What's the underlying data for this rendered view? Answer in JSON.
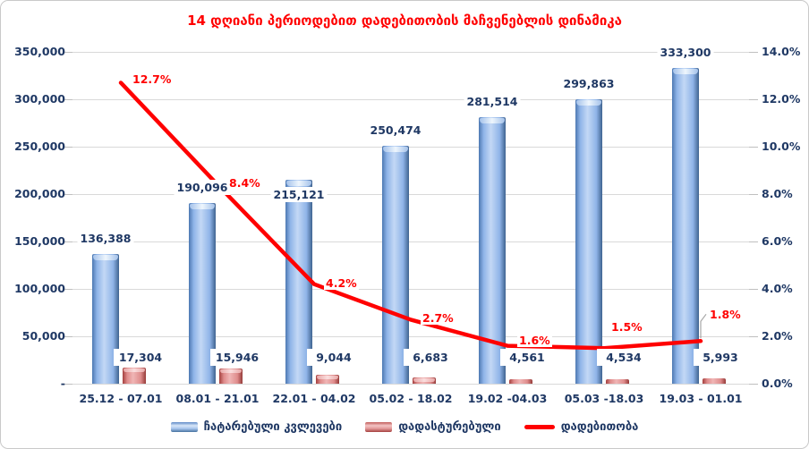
{
  "title": "14 დღიანი პერიოდებით დადებითობის მაჩვენებლის დინამიკა",
  "colors": {
    "title": "#FF0000",
    "axis_text": "#1F3864",
    "grid": "#D9D9D9",
    "line": "#FF0000",
    "pct_label": "#FF0000",
    "bar_blue": "#7EA6E0",
    "bar_red": "#D96A6A",
    "leader_line": "#A6A6A6"
  },
  "chart_data": {
    "type": "bar",
    "subtype": "combo-bar-line",
    "title": "14 დღიანი პერიოდებით დადებითობის მაჩვენებლის დინამიკა",
    "categories": [
      "25.12 - 07.01",
      "08.01 - 21.01",
      "22.01 - 04.02",
      "05.02 - 18.02",
      "19.02 -04.03",
      "05.03 -18.03",
      "19.03 - 01.01"
    ],
    "series": [
      {
        "name": "ჩატარებული კვლევები",
        "type": "bar",
        "axis": "left",
        "color": "#7EA6E0",
        "values": [
          136388,
          190096,
          215121,
          250474,
          281514,
          299863,
          333300
        ],
        "labels": [
          "136,388",
          "190,096",
          "215,121",
          "250,474",
          "281,514",
          "299,863",
          "333,300"
        ]
      },
      {
        "name": "დადასტურებული",
        "type": "bar",
        "axis": "left",
        "color": "#D96A6A",
        "values": [
          17304,
          15946,
          9044,
          6683,
          4561,
          4534,
          5993
        ],
        "labels": [
          "17,304",
          "15,946",
          "9,044",
          "6,683",
          "4,561",
          "4,534",
          "5,993"
        ]
      },
      {
        "name": "დადებითობა",
        "type": "line",
        "axis": "right",
        "color": "#FF0000",
        "values": [
          12.7,
          8.4,
          4.2,
          2.7,
          1.6,
          1.5,
          1.8
        ],
        "labels": [
          "12.7%",
          "8.4%",
          "4.2%",
          "2.7%",
          "1.6%",
          "1.5%",
          "1.8%"
        ]
      }
    ],
    "y_axis_left": {
      "min": 0,
      "max": 350000,
      "step": 50000,
      "tick_labels_bottom_up": [
        "-",
        "50,000",
        "100,000",
        "150,000",
        "200,000",
        "250,000",
        "300,000",
        "350,000"
      ]
    },
    "y_axis_right": {
      "min": 0,
      "max": 14,
      "step": 2,
      "tick_labels_bottom_up": [
        "0.0%",
        "2.0%",
        "4.0%",
        "6.0%",
        "8.0%",
        "10.0%",
        "12.0%",
        "14.0%"
      ]
    },
    "grid": true,
    "legend_position": "bottom"
  },
  "legend": {
    "items": [
      {
        "label": "ჩატარებული კვლევები",
        "swatch": "bar-blue"
      },
      {
        "label": "დადასტურებული",
        "swatch": "bar-red"
      },
      {
        "label": "დადებითობა",
        "swatch": "line-red"
      }
    ]
  }
}
